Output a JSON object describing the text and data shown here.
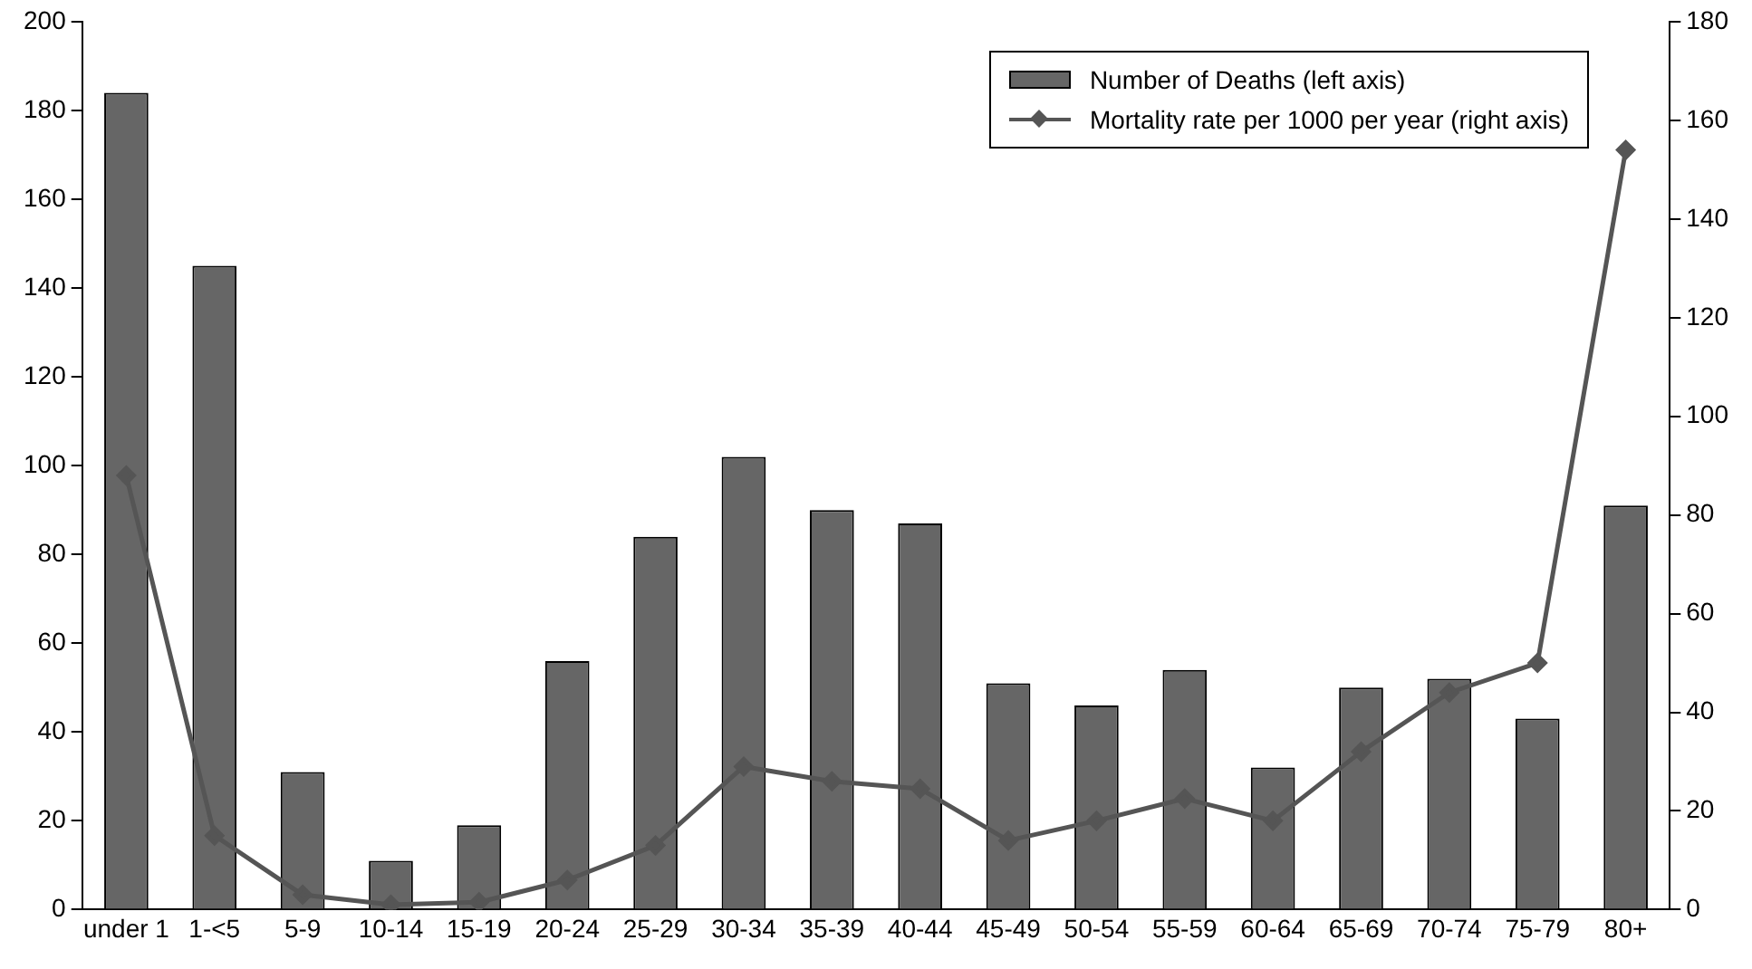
{
  "chart_data": {
    "type": "bar",
    "categories": [
      "under 1",
      "1-<5",
      "5-9",
      "10-14",
      "15-19",
      "20-24",
      "25-29",
      "30-34",
      "35-39",
      "40-44",
      "45-49",
      "50-54",
      "55-59",
      "60-64",
      "65-69",
      "70-74",
      "75-79",
      "80+"
    ],
    "series": [
      {
        "name": "Number of Deaths (left axis)",
        "color": "#666666",
        "values": [
          184,
          145,
          31,
          11,
          19,
          56,
          84,
          102,
          90,
          87,
          51,
          46,
          54,
          32,
          50,
          52,
          43,
          91
        ]
      },
      {
        "name": "Mortality rate per 1000 per year (right axis)",
        "type": "line",
        "axis": "y2",
        "color": "#555555",
        "marker": "diamond",
        "values": [
          88,
          15,
          3,
          1,
          1.5,
          6,
          13,
          29,
          26,
          24.5,
          14,
          18,
          22.5,
          18,
          32,
          44,
          50,
          154
        ]
      }
    ],
    "ylim": [
      0,
      200
    ],
    "yticks": [
      0,
      20,
      40,
      60,
      80,
      100,
      120,
      140,
      160,
      180,
      200
    ],
    "y2lim": [
      0,
      180
    ],
    "y2ticks": [
      0,
      20,
      40,
      60,
      80,
      100,
      120,
      140,
      160,
      180
    ],
    "grid": false,
    "legend": "top right"
  }
}
